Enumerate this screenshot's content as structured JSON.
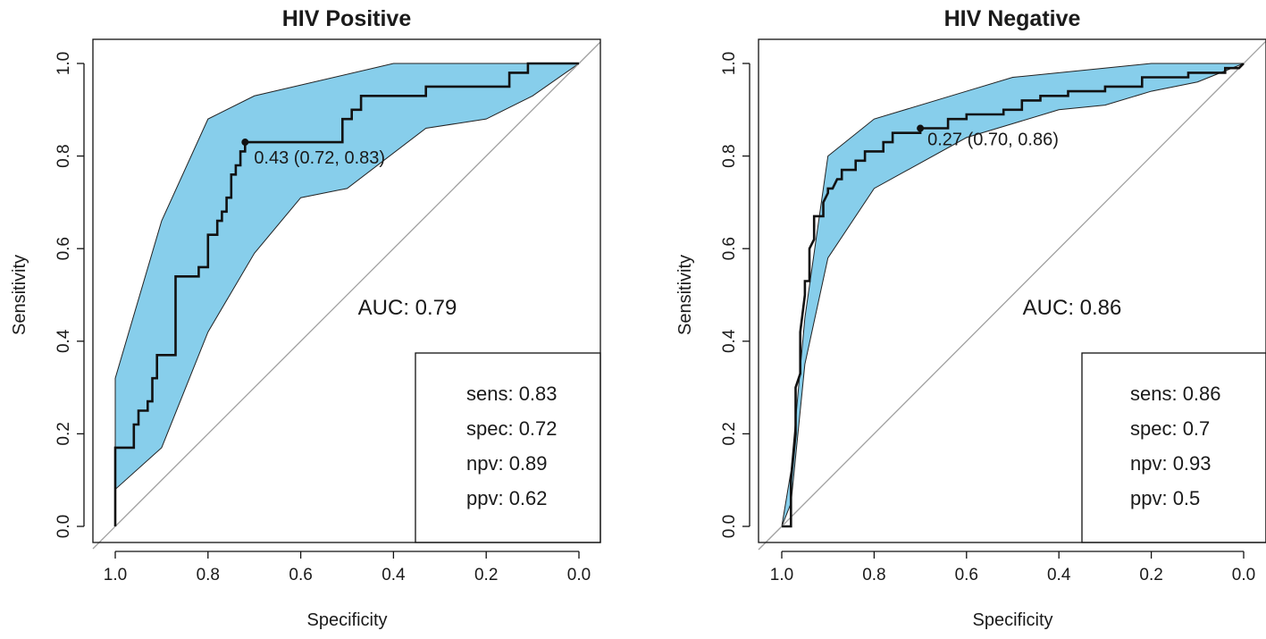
{
  "chart_data": [
    {
      "type": "line",
      "title": "HIV Positive",
      "xlabel": "Specificity",
      "ylabel": "Sensitivity",
      "xlim": [
        1.0,
        0.0
      ],
      "ylim": [
        0.0,
        1.0
      ],
      "x_ticks": [
        "1.0",
        "0.8",
        "0.6",
        "0.4",
        "0.2",
        "0.0"
      ],
      "y_ticks": [
        "0.0",
        "0.2",
        "0.4",
        "0.6",
        "0.8",
        "1.0"
      ],
      "fill_color": "#87ceeb",
      "line_color": "#111111",
      "diagonal_color": "#a0a0a0",
      "auc_label": "AUC: 0.79",
      "threshold_label": "0.43 (0.72, 0.83)",
      "threshold_point": [
        0.72,
        0.83
      ],
      "legend_position": "bottom-right",
      "legend": [
        "sens: 0.83",
        "spec: 0.72",
        "npv: 0.89",
        "ppv: 0.62"
      ],
      "roc_curve": [
        [
          1.0,
          0.0
        ],
        [
          1.0,
          0.17
        ],
        [
          0.96,
          0.17
        ],
        [
          0.96,
          0.22
        ],
        [
          0.95,
          0.22
        ],
        [
          0.95,
          0.25
        ],
        [
          0.93,
          0.25
        ],
        [
          0.93,
          0.27
        ],
        [
          0.92,
          0.27
        ],
        [
          0.92,
          0.32
        ],
        [
          0.91,
          0.32
        ],
        [
          0.91,
          0.37
        ],
        [
          0.87,
          0.37
        ],
        [
          0.87,
          0.54
        ],
        [
          0.82,
          0.54
        ],
        [
          0.82,
          0.56
        ],
        [
          0.8,
          0.56
        ],
        [
          0.8,
          0.63
        ],
        [
          0.78,
          0.63
        ],
        [
          0.78,
          0.66
        ],
        [
          0.77,
          0.66
        ],
        [
          0.77,
          0.68
        ],
        [
          0.76,
          0.68
        ],
        [
          0.76,
          0.71
        ],
        [
          0.75,
          0.71
        ],
        [
          0.75,
          0.76
        ],
        [
          0.74,
          0.76
        ],
        [
          0.74,
          0.78
        ],
        [
          0.73,
          0.78
        ],
        [
          0.73,
          0.81
        ],
        [
          0.72,
          0.81
        ],
        [
          0.72,
          0.83
        ],
        [
          0.51,
          0.83
        ],
        [
          0.51,
          0.88
        ],
        [
          0.49,
          0.88
        ],
        [
          0.49,
          0.9
        ],
        [
          0.47,
          0.9
        ],
        [
          0.47,
          0.93
        ],
        [
          0.33,
          0.93
        ],
        [
          0.33,
          0.95
        ],
        [
          0.15,
          0.95
        ],
        [
          0.15,
          0.98
        ],
        [
          0.11,
          0.98
        ],
        [
          0.11,
          1.0
        ],
        [
          0.0,
          1.0
        ]
      ],
      "ci_upper": [
        [
          1.0,
          0.32
        ],
        [
          0.9,
          0.66
        ],
        [
          0.8,
          0.88
        ],
        [
          0.7,
          0.93
        ],
        [
          0.4,
          1.0
        ],
        [
          0.0,
          1.0
        ]
      ],
      "ci_lower": [
        [
          1.0,
          0.08
        ],
        [
          0.9,
          0.17
        ],
        [
          0.8,
          0.42
        ],
        [
          0.7,
          0.59
        ],
        [
          0.6,
          0.71
        ],
        [
          0.5,
          0.73
        ],
        [
          0.33,
          0.86
        ],
        [
          0.2,
          0.88
        ],
        [
          0.1,
          0.93
        ],
        [
          0.0,
          1.0
        ]
      ]
    },
    {
      "type": "line",
      "title": "HIV Negative",
      "xlabel": "Specificity",
      "ylabel": "Sensitivity",
      "xlim": [
        1.0,
        0.0
      ],
      "ylim": [
        0.0,
        1.0
      ],
      "x_ticks": [
        "1.0",
        "0.8",
        "0.6",
        "0.4",
        "0.2",
        "0.0"
      ],
      "y_ticks": [
        "0.0",
        "0.2",
        "0.4",
        "0.6",
        "0.8",
        "1.0"
      ],
      "fill_color": "#87ceeb",
      "line_color": "#111111",
      "diagonal_color": "#a0a0a0",
      "auc_label": "AUC: 0.86",
      "threshold_label": "0.27 (0.70, 0.86)",
      "threshold_point": [
        0.7,
        0.86
      ],
      "legend_position": "bottom-right",
      "legend": [
        "sens: 0.86",
        "spec: 0.7",
        "npv: 0.93",
        "ppv: 0.5"
      ],
      "roc_curve": [
        [
          1.0,
          0.0
        ],
        [
          0.98,
          0.0
        ],
        [
          0.98,
          0.1
        ],
        [
          0.97,
          0.2
        ],
        [
          0.97,
          0.3
        ],
        [
          0.96,
          0.33
        ],
        [
          0.96,
          0.42
        ],
        [
          0.95,
          0.5
        ],
        [
          0.95,
          0.53
        ],
        [
          0.94,
          0.53
        ],
        [
          0.94,
          0.6
        ],
        [
          0.93,
          0.62
        ],
        [
          0.93,
          0.67
        ],
        [
          0.91,
          0.67
        ],
        [
          0.91,
          0.7
        ],
        [
          0.9,
          0.72
        ],
        [
          0.9,
          0.73
        ],
        [
          0.89,
          0.73
        ],
        [
          0.88,
          0.75
        ],
        [
          0.87,
          0.75
        ],
        [
          0.87,
          0.77
        ],
        [
          0.84,
          0.77
        ],
        [
          0.84,
          0.79
        ],
        [
          0.82,
          0.79
        ],
        [
          0.82,
          0.81
        ],
        [
          0.78,
          0.81
        ],
        [
          0.78,
          0.83
        ],
        [
          0.76,
          0.83
        ],
        [
          0.76,
          0.85
        ],
        [
          0.7,
          0.85
        ],
        [
          0.7,
          0.86
        ],
        [
          0.64,
          0.86
        ],
        [
          0.64,
          0.88
        ],
        [
          0.6,
          0.88
        ],
        [
          0.6,
          0.89
        ],
        [
          0.52,
          0.89
        ],
        [
          0.52,
          0.9
        ],
        [
          0.48,
          0.9
        ],
        [
          0.48,
          0.92
        ],
        [
          0.44,
          0.92
        ],
        [
          0.44,
          0.93
        ],
        [
          0.38,
          0.93
        ],
        [
          0.38,
          0.94
        ],
        [
          0.3,
          0.94
        ],
        [
          0.3,
          0.95
        ],
        [
          0.22,
          0.95
        ],
        [
          0.22,
          0.97
        ],
        [
          0.12,
          0.97
        ],
        [
          0.12,
          0.98
        ],
        [
          0.04,
          0.98
        ],
        [
          0.04,
          0.99
        ],
        [
          0.01,
          0.99
        ],
        [
          0.0,
          1.0
        ]
      ],
      "ci_upper": [
        [
          1.0,
          0.0
        ],
        [
          0.98,
          0.12
        ],
        [
          0.95,
          0.45
        ],
        [
          0.9,
          0.8
        ],
        [
          0.8,
          0.88
        ],
        [
          0.6,
          0.94
        ],
        [
          0.5,
          0.97
        ],
        [
          0.2,
          1.0
        ],
        [
          0.0,
          1.0
        ]
      ],
      "ci_lower": [
        [
          1.0,
          0.0
        ],
        [
          0.98,
          0.05
        ],
        [
          0.95,
          0.35
        ],
        [
          0.9,
          0.58
        ],
        [
          0.8,
          0.73
        ],
        [
          0.6,
          0.84
        ],
        [
          0.5,
          0.87
        ],
        [
          0.4,
          0.9
        ],
        [
          0.3,
          0.91
        ],
        [
          0.2,
          0.94
        ],
        [
          0.1,
          0.96
        ],
        [
          0.0,
          1.0
        ]
      ]
    }
  ]
}
